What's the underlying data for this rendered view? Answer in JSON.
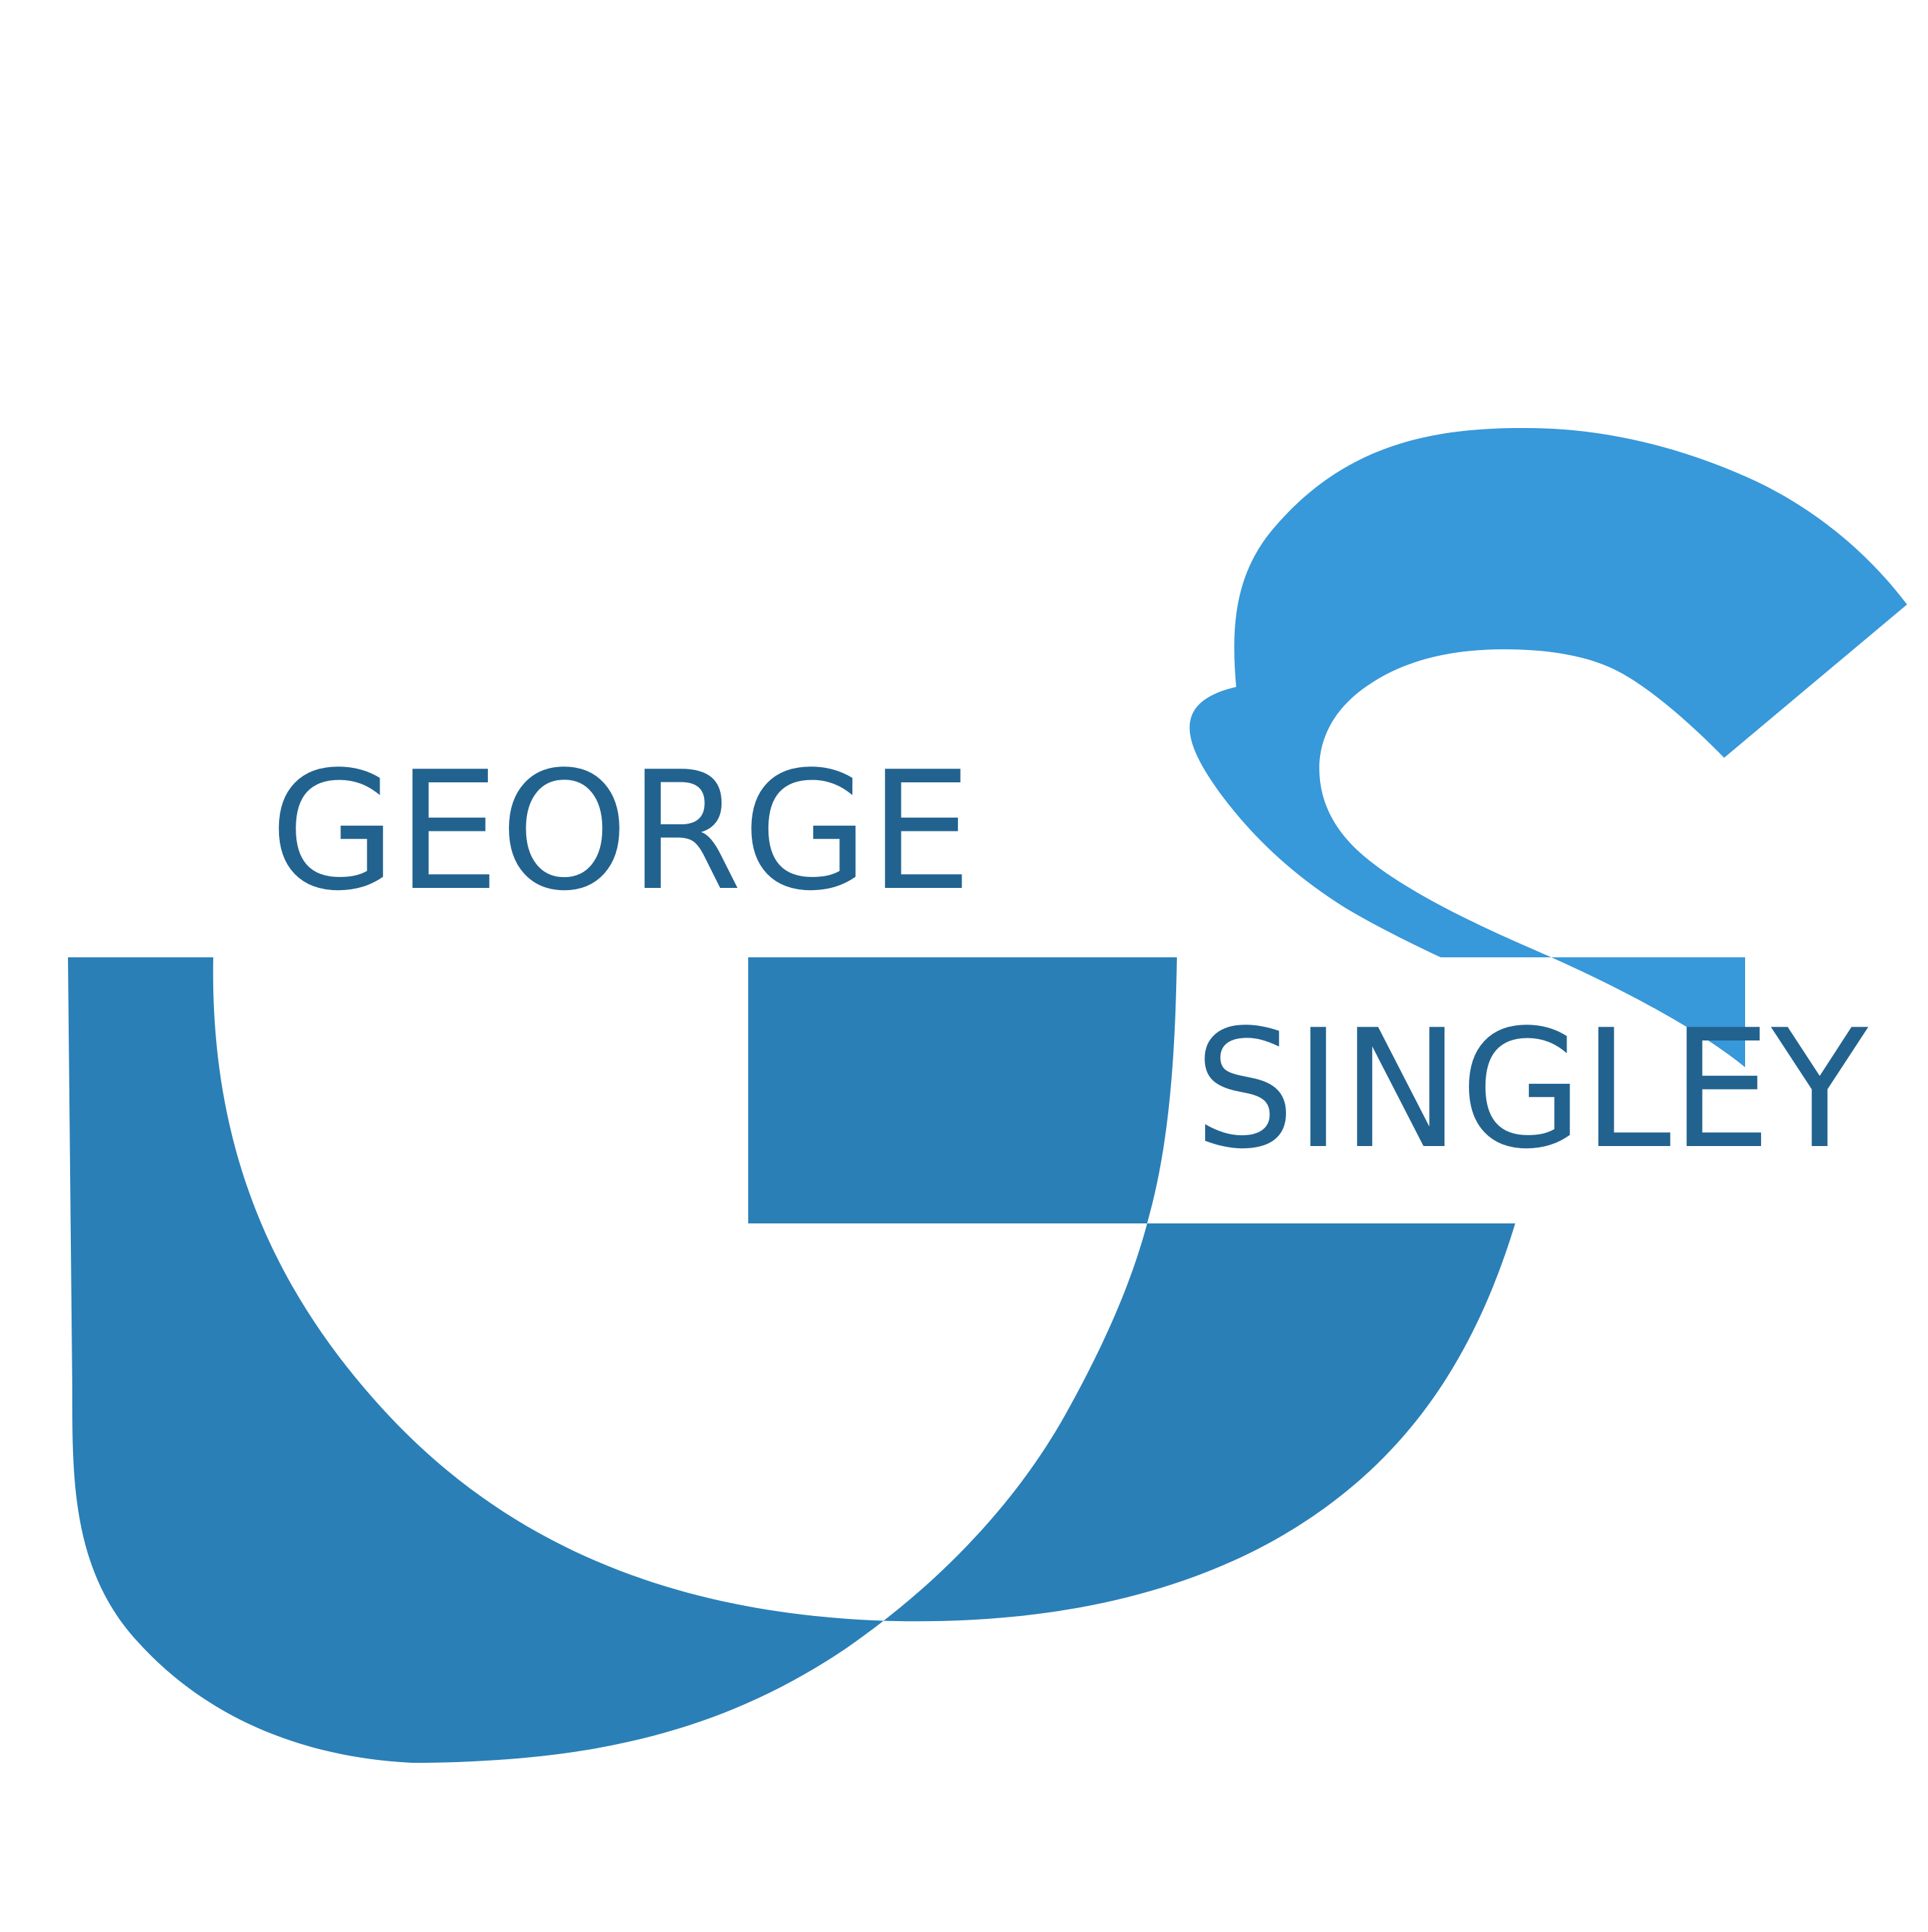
{
  "logo": {
    "first_name": "GEORGE",
    "last_name": "SINGLEY",
    "monogram": "GS",
    "colors": {
      "background": "#ffffff",
      "g_blue": "#2a7fb7",
      "s_blue": "#3798da",
      "text_blue": "#22628f"
    }
  }
}
